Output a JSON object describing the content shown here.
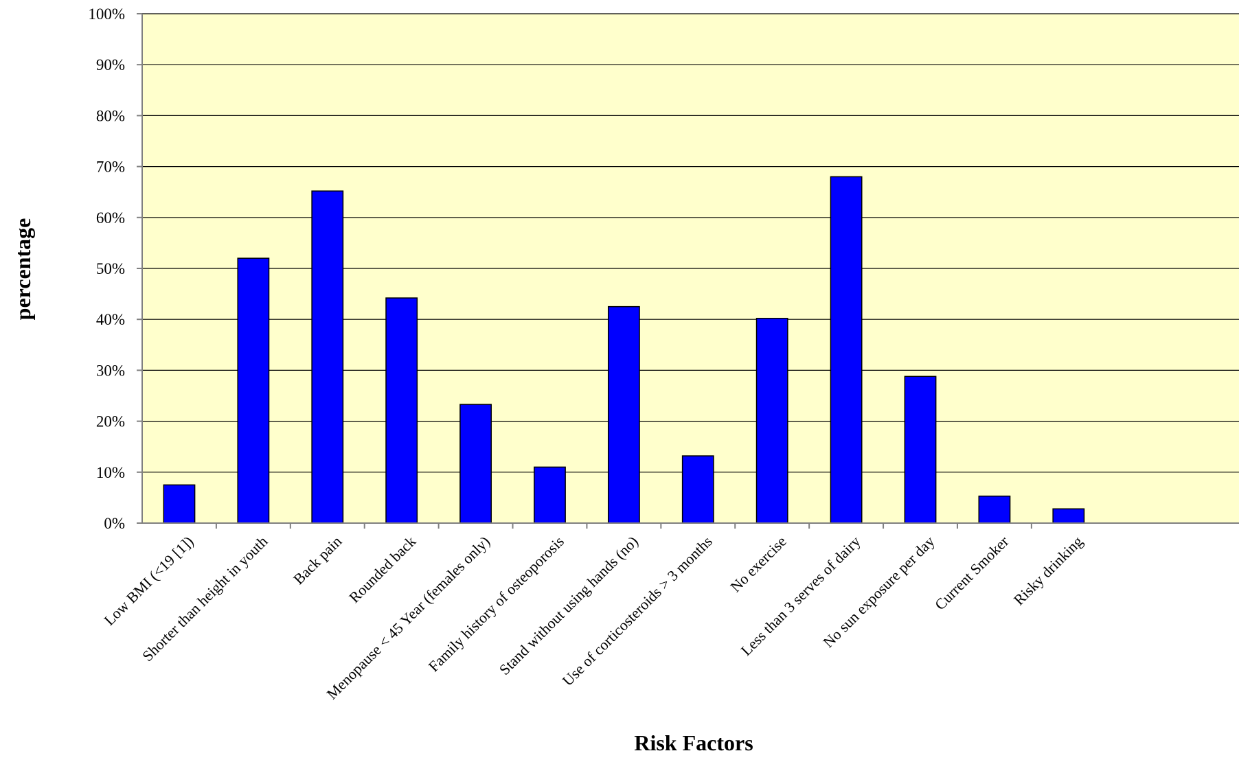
{
  "chart_data": {
    "type": "bar",
    "title": "",
    "xlabel": "Risk Factors",
    "ylabel": "percentage",
    "categories": [
      "Low BMI  (<19 [1])",
      "Shorter than height in youth",
      "Back pain",
      "Rounded back",
      "Menopause < 45 Year (females only)",
      "Family history of osteoporosis",
      "Stand without using hands (no)",
      "Use of corticosteroids > 3 months",
      "No exercise",
      "Less than 3 serves of dairy",
      "No sun exposure per day",
      "Current Smoker",
      "Risky drinking"
    ],
    "values": [
      7.5,
      52,
      65.2,
      44.2,
      23.3,
      11,
      42.5,
      13.2,
      40.2,
      68,
      28.8,
      5.3,
      2.8
    ],
    "ylim": [
      0,
      100
    ],
    "yticks": [
      "0%",
      "10%",
      "20%",
      "30%",
      "40%",
      "50%",
      "60%",
      "70%",
      "80%",
      "90%",
      "100%"
    ],
    "grid": true,
    "legend": "none",
    "colors": {
      "bar_fill": "#0000ff",
      "bar_stroke": "#000000",
      "plot_background": "#ffffcc",
      "gridline": "#000000",
      "axis": "#808080"
    }
  }
}
